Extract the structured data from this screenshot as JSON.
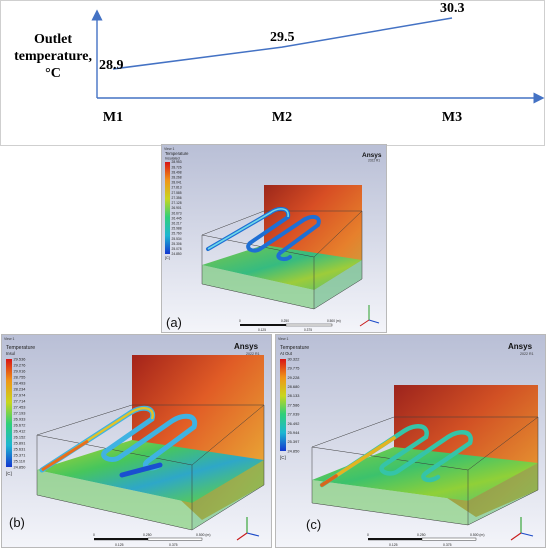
{
  "chart_data": {
    "type": "line",
    "ylabel_lines": [
      "Outlet",
      "temperature,",
      "°C"
    ],
    "categories": [
      "M1",
      "M2",
      "M3"
    ],
    "series": [
      {
        "values": [
          28.9,
          29.5,
          30.3
        ]
      }
    ],
    "data_labels": [
      "28.9",
      "29.5",
      "30.3"
    ],
    "color": "#4472c4",
    "grid": false
  },
  "panels": {
    "a": {
      "caption": "(a)",
      "window_tag": "View 1",
      "logo": "Ansys",
      "version": "2022 R1",
      "legend_title": "Temperature",
      "legend_subtitle": "Insulated",
      "legend_values": [
        "28.953",
        "28.726",
        "28.498",
        "28.268",
        "28.041",
        "27.813",
        "27.585",
        "27.356",
        "27.128",
        "26.901",
        "26.673",
        "26.445",
        "26.217",
        "25.988",
        "25.760",
        "25.534",
        "25.306",
        "25.078",
        "24.850"
      ],
      "unit": "[C]",
      "scale_labels": [
        "0",
        "0.250",
        "0.500 (m)"
      ],
      "scale_sub": [
        "0.125",
        "0.375"
      ]
    },
    "b": {
      "caption": "(b)",
      "window_tag": "View 1",
      "logo": "Ansys",
      "version": "2022 R1",
      "legend_title": "Temperature",
      "legend_subtitle": "Insul",
      "legend_values": [
        "29.536",
        "29.276",
        "29.016",
        "28.755",
        "28.493",
        "28.234",
        "27.974",
        "27.714",
        "27.453",
        "27.193",
        "26.933",
        "26.672",
        "26.412",
        "26.152",
        "25.891",
        "25.631",
        "25.371",
        "25.110",
        "24.850"
      ],
      "unit": "[C]",
      "scale_labels": [
        "0",
        "0.250",
        "0.500 (m)"
      ],
      "scale_sub": [
        "0.125",
        "0.375"
      ]
    },
    "c": {
      "caption": "(c)",
      "window_tag": "View 1",
      "logo": "Ansys",
      "version": "2022 R1",
      "legend_title": "Temperature",
      "legend_subtitle": "At Out",
      "legend_values": [
        "30.322",
        "29.775",
        "29.228",
        "28.680",
        "28.133",
        "27.586",
        "27.039",
        "26.492",
        "25.944",
        "25.397",
        "24.850"
      ],
      "unit": "[C]",
      "scale_labels": [
        "0",
        "0.250",
        "0.500 (m)"
      ],
      "scale_sub": [
        "0.125",
        "0.375"
      ]
    }
  }
}
